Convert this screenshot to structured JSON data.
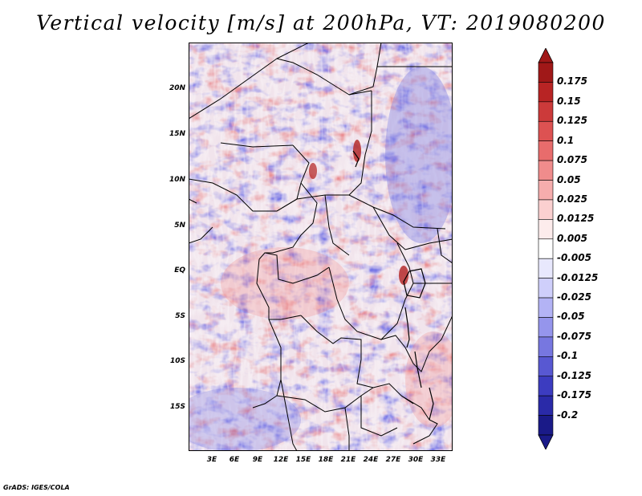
{
  "title": "Vertical velocity [m/s] at 200hPa, VT: 2019080200",
  "credit": "GrADS: IGES/COLA",
  "lat_labels": [
    "20N",
    "15N",
    "10N",
    "5N",
    "EQ",
    "5S",
    "10S",
    "15S"
  ],
  "lon_labels": [
    "3E",
    "6E",
    "9E",
    "12E",
    "15E",
    "18E",
    "21E",
    "24E",
    "27E",
    "30E",
    "33E"
  ],
  "colorbar": {
    "levels": [
      "0.175",
      "0.15",
      "0.125",
      "0.1",
      "0.075",
      "0.05",
      "0.025",
      "0.0125",
      "0.005",
      "-0.005",
      "-0.0125",
      "-0.025",
      "-0.05",
      "-0.075",
      "-0.1",
      "-0.125",
      "-0.175",
      "-0.2"
    ],
    "colors": [
      "#a01818",
      "#b82424",
      "#cc3a3a",
      "#dd5252",
      "#e86c6c",
      "#f08c8c",
      "#f6adad",
      "#fbd0d0",
      "#fdecec",
      "#ffffff",
      "#e8e8fd",
      "#cfcffb",
      "#b3b3f5",
      "#9595ec",
      "#7777e0",
      "#5858d2",
      "#3c3cc0",
      "#2a2aa8",
      "#1a1a88"
    ],
    "max_arrow_color": "#a01818",
    "min_arrow_color": "#1a1a88"
  },
  "map_colors": {
    "positive": "#ee8e8e",
    "negative": "#8c8cea",
    "neutral": "#f4f0f6",
    "border": "#000000"
  }
}
